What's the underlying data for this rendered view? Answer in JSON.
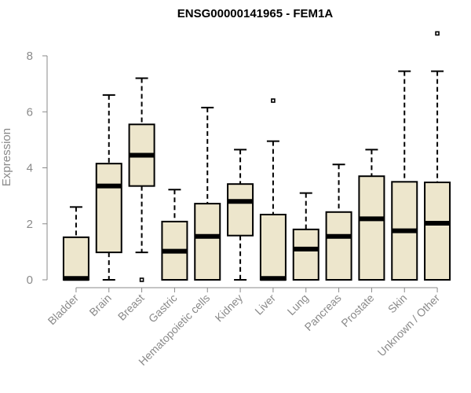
{
  "chart_data": {
    "type": "boxplot",
    "title": "ENSG00000141965 - FEM1A",
    "xlabel": "",
    "ylabel": "Expression",
    "ylim": [
      0,
      8
    ],
    "yticks": [
      0,
      2,
      4,
      6,
      8
    ],
    "grid": false,
    "box_fill": "#ede6cc",
    "categories": [
      "Bladder",
      "Brain",
      "Breast",
      "Gastric",
      "Hematopoietic cells",
      "Kidney",
      "Liver",
      "Lung",
      "Pancreas",
      "Prostate",
      "Skin",
      "Unknown / Other"
    ],
    "boxes": [
      {
        "name": "Bladder",
        "whisker_low": 0,
        "q1": 0,
        "median": 0.05,
        "q3": 1.52,
        "whisker_high": 2.6,
        "outliers": []
      },
      {
        "name": "Brain",
        "whisker_low": 0,
        "q1": 0.98,
        "median": 3.35,
        "q3": 4.15,
        "whisker_high": 6.6,
        "outliers": []
      },
      {
        "name": "Breast",
        "whisker_low": 0.98,
        "q1": 3.35,
        "median": 4.45,
        "q3": 5.55,
        "whisker_high": 7.2,
        "outliers": [
          0
        ]
      },
      {
        "name": "Gastric",
        "whisker_low": 0,
        "q1": 0,
        "median": 1.02,
        "q3": 2.08,
        "whisker_high": 3.22,
        "outliers": []
      },
      {
        "name": "Hematopoietic cells",
        "whisker_low": 0,
        "q1": 0,
        "median": 1.55,
        "q3": 2.72,
        "whisker_high": 6.15,
        "outliers": []
      },
      {
        "name": "Kidney",
        "whisker_low": 0,
        "q1": 1.58,
        "median": 2.8,
        "q3": 3.42,
        "whisker_high": 4.65,
        "outliers": []
      },
      {
        "name": "Liver",
        "whisker_low": 0,
        "q1": 0,
        "median": 0.05,
        "q3": 2.33,
        "whisker_high": 4.95,
        "outliers": [
          6.4
        ]
      },
      {
        "name": "Lung",
        "whisker_low": 0,
        "q1": 0,
        "median": 1.1,
        "q3": 1.8,
        "whisker_high": 3.1,
        "outliers": []
      },
      {
        "name": "Pancreas",
        "whisker_low": 0,
        "q1": 0,
        "median": 1.55,
        "q3": 2.42,
        "whisker_high": 4.12,
        "outliers": []
      },
      {
        "name": "Prostate",
        "whisker_low": 0,
        "q1": 0,
        "median": 2.18,
        "q3": 3.7,
        "whisker_high": 4.65,
        "outliers": []
      },
      {
        "name": "Skin",
        "whisker_low": 0,
        "q1": 0,
        "median": 1.75,
        "q3": 3.5,
        "whisker_high": 7.45,
        "outliers": []
      },
      {
        "name": "Unknown / Other",
        "whisker_low": 0,
        "q1": 0,
        "median": 2.02,
        "q3": 3.48,
        "whisker_high": 7.45,
        "outliers": [
          8.8
        ]
      }
    ]
  }
}
